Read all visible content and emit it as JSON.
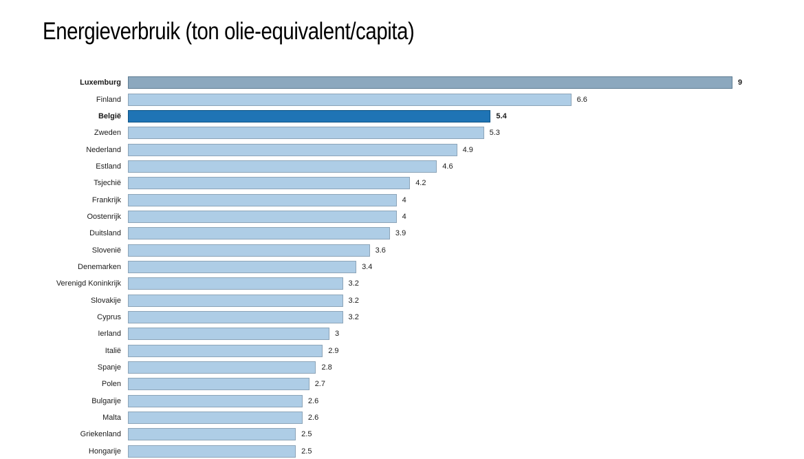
{
  "page": {
    "background_color": "#ffffff"
  },
  "chart_data": {
    "type": "bar",
    "orientation": "horizontal",
    "title": "Energieverbruik (ton olie-equivalent/capita)",
    "xlabel": "",
    "ylabel": "",
    "xlim": [
      0,
      9
    ],
    "grid": false,
    "legend": false,
    "value_labels_position": "right-of-bar",
    "categories": [
      "Luxemburg",
      "Finland",
      "België",
      "Zweden",
      "Nederland",
      "Estland",
      "Tsjechië",
      "Frankrijk",
      "Oostenrijk",
      "Duitsland",
      "Slovenië",
      "Denemarken",
      "Verenigd Koninkrijk",
      "Slovakije",
      "Cyprus",
      "Ierland",
      "Italië",
      "Spanje",
      "Polen",
      "Bulgarije",
      "Malta",
      "Griekenland",
      "Hongarije"
    ],
    "values": [
      9,
      6.6,
      5.4,
      5.3,
      4.9,
      4.6,
      4.2,
      4,
      4,
      3.9,
      3.6,
      3.4,
      3.2,
      3.2,
      3.2,
      3,
      2.9,
      2.8,
      2.7,
      2.6,
      2.6,
      2.5,
      2.5
    ],
    "value_labels": [
      "9",
      "6.6",
      "5.4",
      "5.3",
      "4.9",
      "4.6",
      "4.2",
      "4",
      "4",
      "3.9",
      "3.6",
      "3.4",
      "3.2",
      "3.2",
      "3.2",
      "3",
      "2.9",
      "2.8",
      "2.7",
      "2.6",
      "2.6",
      "2.5",
      "2.5"
    ],
    "emphasized_categories": [
      "Luxemburg",
      "België"
    ],
    "colors": {
      "default_fill": "#AECDE6",
      "default_border": "#8CA4B8",
      "title_color": "#000000",
      "label_color": "#1A1A1A",
      "overrides": {
        "Luxemburg": {
          "fill": "#8CA8BE",
          "border": "#5E7C92"
        },
        "België": {
          "fill": "#1F74B5",
          "border": "#0E5384"
        }
      }
    }
  }
}
